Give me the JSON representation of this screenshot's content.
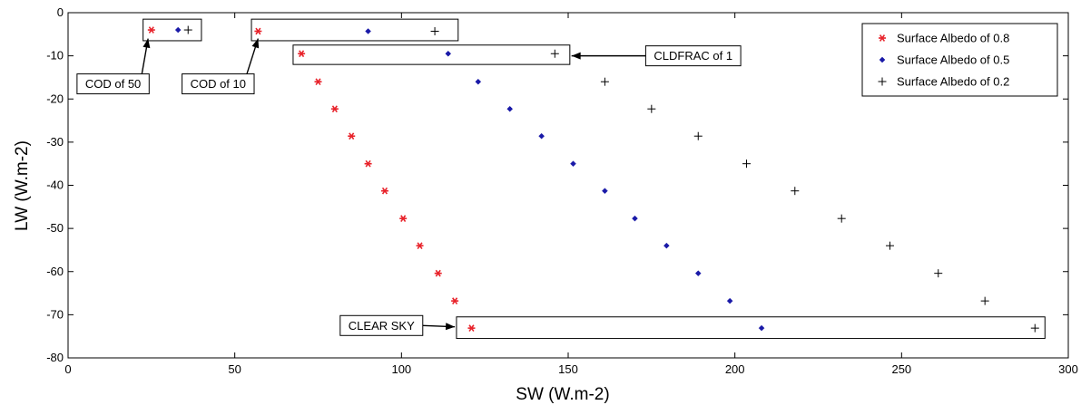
{
  "chart_data": {
    "type": "scatter",
    "xlabel": "SW    (W.m-2)",
    "ylabel": "LW    (W.m-2)",
    "xlim": [
      0,
      300
    ],
    "ylim": [
      -80,
      0
    ],
    "xticks": [
      0,
      50,
      100,
      150,
      200,
      250,
      300
    ],
    "yticks": [
      0,
      -10,
      -20,
      -30,
      -40,
      -50,
      -60,
      -70,
      -80
    ],
    "grid": false,
    "legend_position": "top-right",
    "series": [
      {
        "name": "Surface Albedo of 0.8",
        "marker": "asterisk",
        "color": "#e8222a",
        "points": [
          [
            25,
            -4
          ],
          [
            57,
            -4.3
          ],
          [
            70,
            -9.5
          ],
          [
            75,
            -16
          ],
          [
            80,
            -22.3
          ],
          [
            85,
            -28.6
          ],
          [
            90,
            -35
          ],
          [
            95,
            -41.3
          ],
          [
            100.5,
            -47.7
          ],
          [
            105.5,
            -54
          ],
          [
            111,
            -60.4
          ],
          [
            116,
            -66.8
          ],
          [
            121,
            -73.1
          ]
        ]
      },
      {
        "name": "Surface Albedo of 0.5",
        "marker": "diamond",
        "color": "#1a1aa8",
        "points": [
          [
            33,
            -4
          ],
          [
            90,
            -4.3
          ],
          [
            114,
            -9.5
          ],
          [
            123,
            -16
          ],
          [
            132.5,
            -22.3
          ],
          [
            142,
            -28.6
          ],
          [
            151.5,
            -35
          ],
          [
            161,
            -41.3
          ],
          [
            170,
            -47.7
          ],
          [
            179.5,
            -54
          ],
          [
            189,
            -60.4
          ],
          [
            198.5,
            -66.8
          ],
          [
            208,
            -73.1
          ]
        ]
      },
      {
        "name": "Surface Albedo of 0.2",
        "marker": "plus",
        "color": "#000000",
        "points": [
          [
            36,
            -4
          ],
          [
            110,
            -4.3
          ],
          [
            146,
            -9.5
          ],
          [
            161,
            -16
          ],
          [
            175,
            -22.3
          ],
          [
            189,
            -28.6
          ],
          [
            203.5,
            -35
          ],
          [
            218,
            -41.3
          ],
          [
            232,
            -47.7
          ],
          [
            246.5,
            -54
          ],
          [
            261,
            -60.4
          ],
          [
            275,
            -66.8
          ],
          [
            290,
            -73.1
          ]
        ]
      }
    ],
    "annotations": [
      {
        "text": "COD of 50",
        "x": 13.5,
        "y": -16.5,
        "target": [
          24,
          -6
        ],
        "box": {
          "x0": 22.5,
          "x1": 40,
          "y0": -6.5,
          "y1": -1.5
        }
      },
      {
        "text": "COD of 10",
        "x": 45,
        "y": -16.5,
        "target": [
          57,
          -6
        ],
        "box": {
          "x0": 55,
          "x1": 117,
          "y0": -6.5,
          "y1": -1.5
        }
      },
      {
        "text": "CLDFRAC of 1",
        "x": 187.5,
        "y": -10,
        "target": [
          151,
          -10
        ],
        "box": {
          "x0": 67.5,
          "x1": 150.5,
          "y0": -12,
          "y1": -7.5
        }
      },
      {
        "text": "CLEAR SKY",
        "x": 94,
        "y": -72.5,
        "target": [
          116,
          -72.8
        ],
        "box": {
          "x0": 116.5,
          "x1": 293,
          "y0": -75.5,
          "y1": -70.5
        }
      }
    ]
  }
}
